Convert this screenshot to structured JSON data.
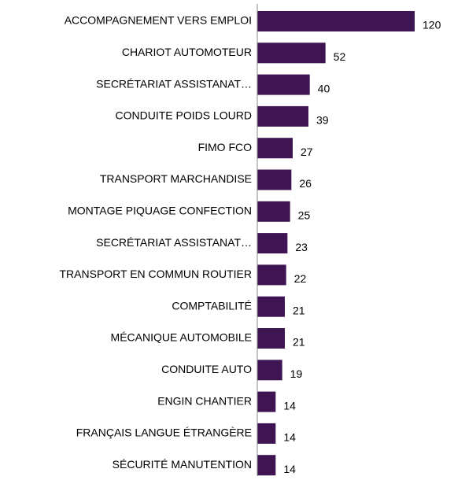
{
  "chart_data": {
    "type": "bar",
    "orientation": "horizontal",
    "categories": [
      "ACCOMPAGNEMENT VERS EMPLOI",
      "CHARIOT AUTOMOTEUR",
      "SECRÉTARIAT ASSISTANAT…",
      "CONDUITE POIDS LOURD",
      "FIMO FCO",
      "TRANSPORT MARCHANDISE",
      "MONTAGE PIQUAGE CONFECTION",
      "SECRÉTARIAT ASSISTANAT…",
      "TRANSPORT EN COMMUN ROUTIER",
      "COMPTABILITÉ",
      "MÉCANIQUE AUTOMOBILE",
      "CONDUITE AUTO",
      "ENGIN CHANTIER",
      "FRANÇAIS LANGUE ÉTRANGÈRE",
      "SÉCURITÉ MANUTENTION"
    ],
    "values": [
      120,
      52,
      40,
      39,
      27,
      26,
      25,
      23,
      22,
      21,
      21,
      19,
      14,
      14,
      14
    ],
    "color": "#3f1452"
  }
}
